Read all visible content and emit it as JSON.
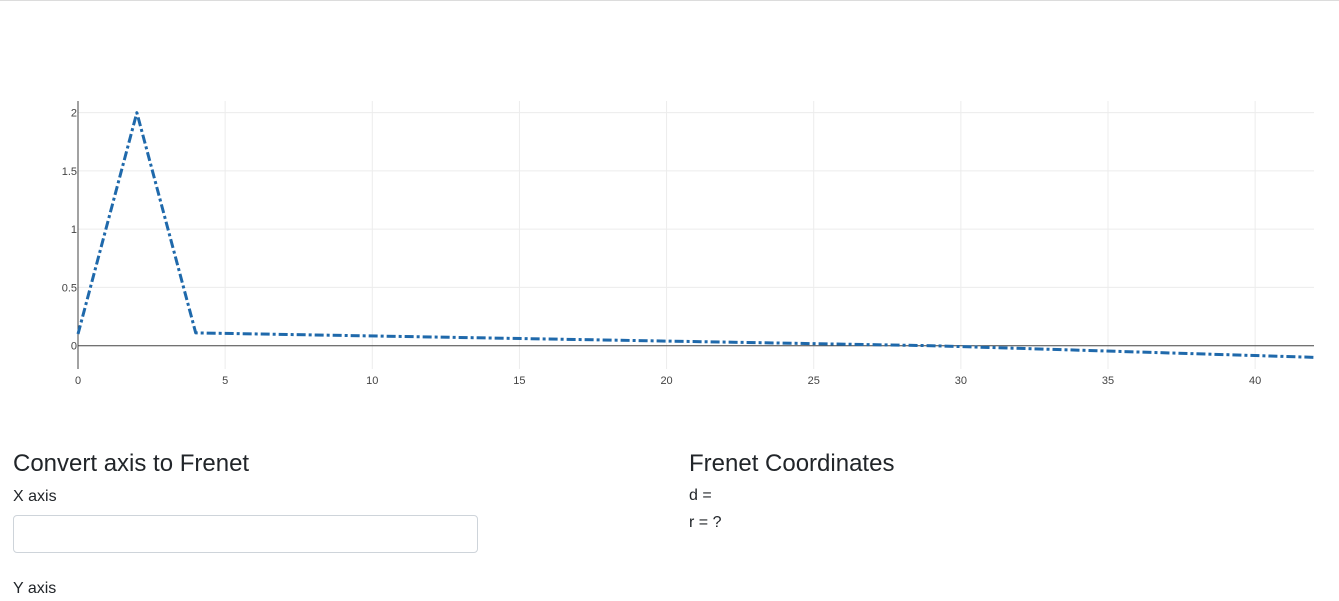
{
  "chart_data": {
    "type": "line",
    "x": [
      0,
      2,
      4,
      29,
      42
    ],
    "y": [
      0.1,
      2.0,
      0.11,
      0.0,
      -0.1
    ],
    "xlim": [
      0,
      42
    ],
    "ylim": [
      -0.2,
      2.1
    ],
    "xticks": [
      0,
      5,
      10,
      15,
      20,
      25,
      30,
      35,
      40
    ],
    "yticks": [
      0,
      0.5,
      1,
      1.5,
      2
    ],
    "xtick_labels": [
      "0",
      "5",
      "10",
      "15",
      "20",
      "25",
      "30",
      "35",
      "40"
    ],
    "ytick_labels": [
      "0",
      "0.5",
      "1",
      "1.5",
      "2"
    ],
    "line_style": "dashdot",
    "line_color": "#1f69ab",
    "grid": true,
    "title": "",
    "xlabel": "",
    "ylabel": ""
  },
  "converter": {
    "title": "Convert axis to Frenet",
    "x_label": "X axis",
    "x_value": "",
    "x_placeholder": "",
    "y_label": "Y axis"
  },
  "frenet": {
    "title": "Frenet Coordinates",
    "d_line": "d =",
    "r_line": "r = ?"
  }
}
